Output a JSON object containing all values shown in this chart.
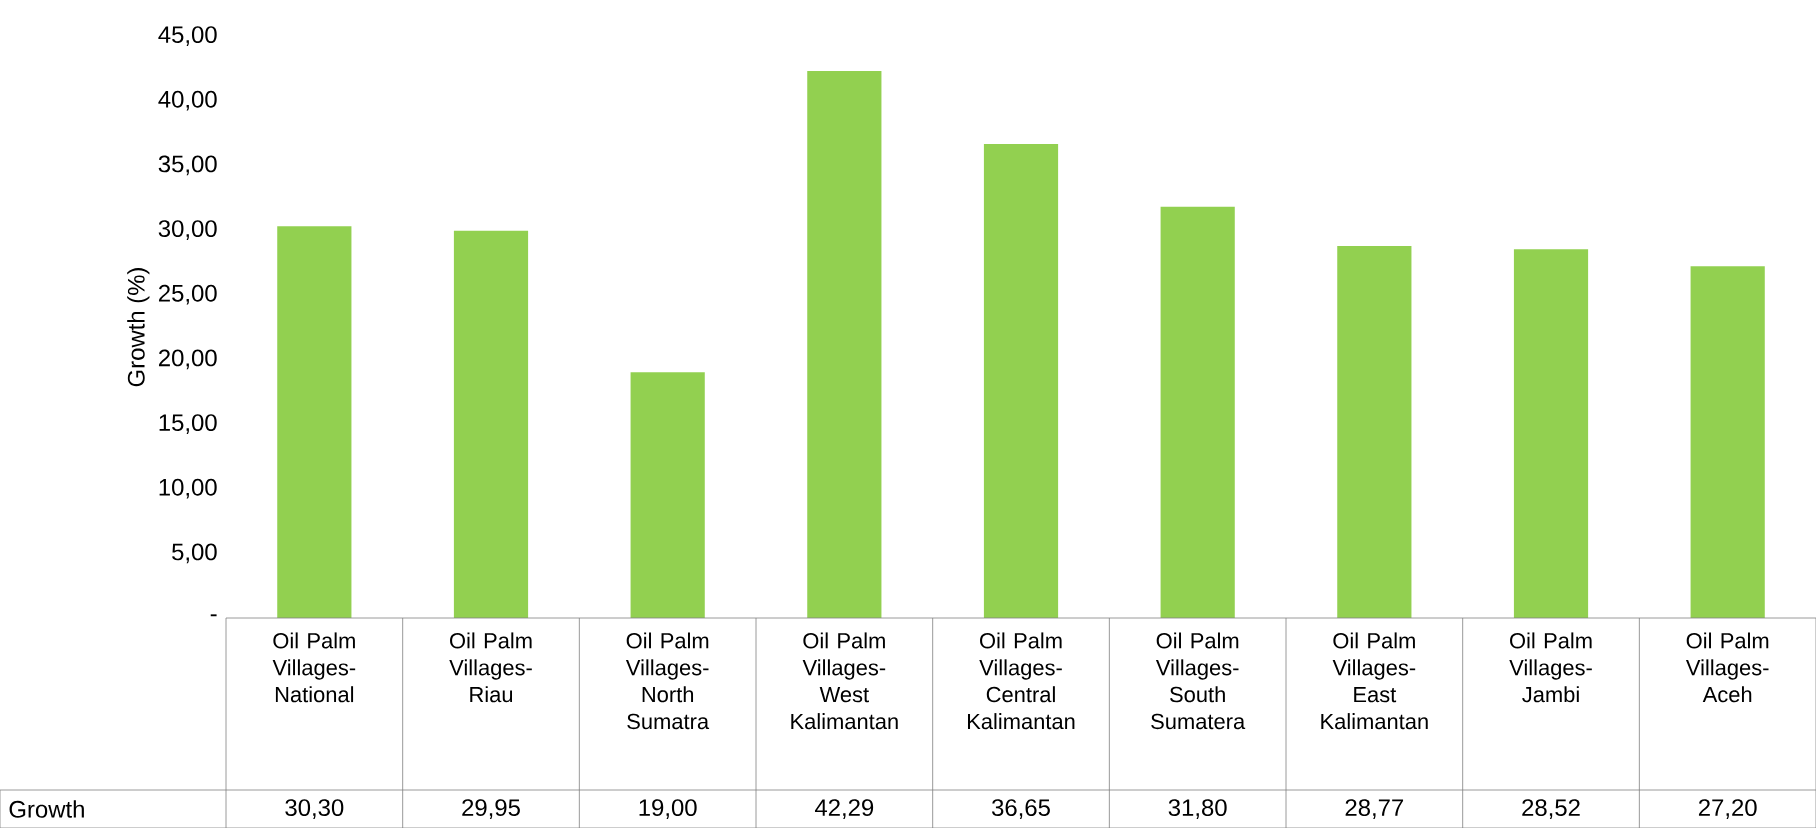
{
  "chart_data": {
    "type": "bar",
    "ylabel": "Growth (%)",
    "categories": [
      "Oil Palm Villages-National",
      "Oil Palm Villages-Riau",
      "Oil Palm Villages-North Sumatra",
      "Oil Palm Villages-West Kalimantan",
      "Oil Palm Villages-Central Kalimantan",
      "Oil Palm Villages-South Sumatera",
      "Oil Palm Villages-East Kalimantan",
      "Oil Palm Villages-Jambi",
      "Oil Palm Villages-Aceh"
    ],
    "series": [
      {
        "name": "Growth",
        "color": "#92d050",
        "values": [
          30.3,
          29.95,
          19.0,
          42.29,
          36.65,
          31.8,
          28.77,
          28.52,
          27.2
        ],
        "value_labels": [
          "30,30",
          "29,95",
          "19,00",
          "42,29",
          "36,65",
          "31,80",
          "28,77",
          "28,52",
          "27,20"
        ]
      }
    ],
    "ylim": [
      0,
      45
    ],
    "yticks": [
      {
        "value": 0,
        "label": "-"
      },
      {
        "value": 5,
        "label": "5,00"
      },
      {
        "value": 10,
        "label": "10,00"
      },
      {
        "value": 15,
        "label": "15,00"
      },
      {
        "value": 20,
        "label": "20,00"
      },
      {
        "value": 25,
        "label": "25,00"
      },
      {
        "value": 30,
        "label": "30,00"
      },
      {
        "value": 35,
        "label": "35,00"
      },
      {
        "value": 40,
        "label": "40,00"
      },
      {
        "value": 45,
        "label": "45,00"
      }
    ],
    "grid": false
  }
}
